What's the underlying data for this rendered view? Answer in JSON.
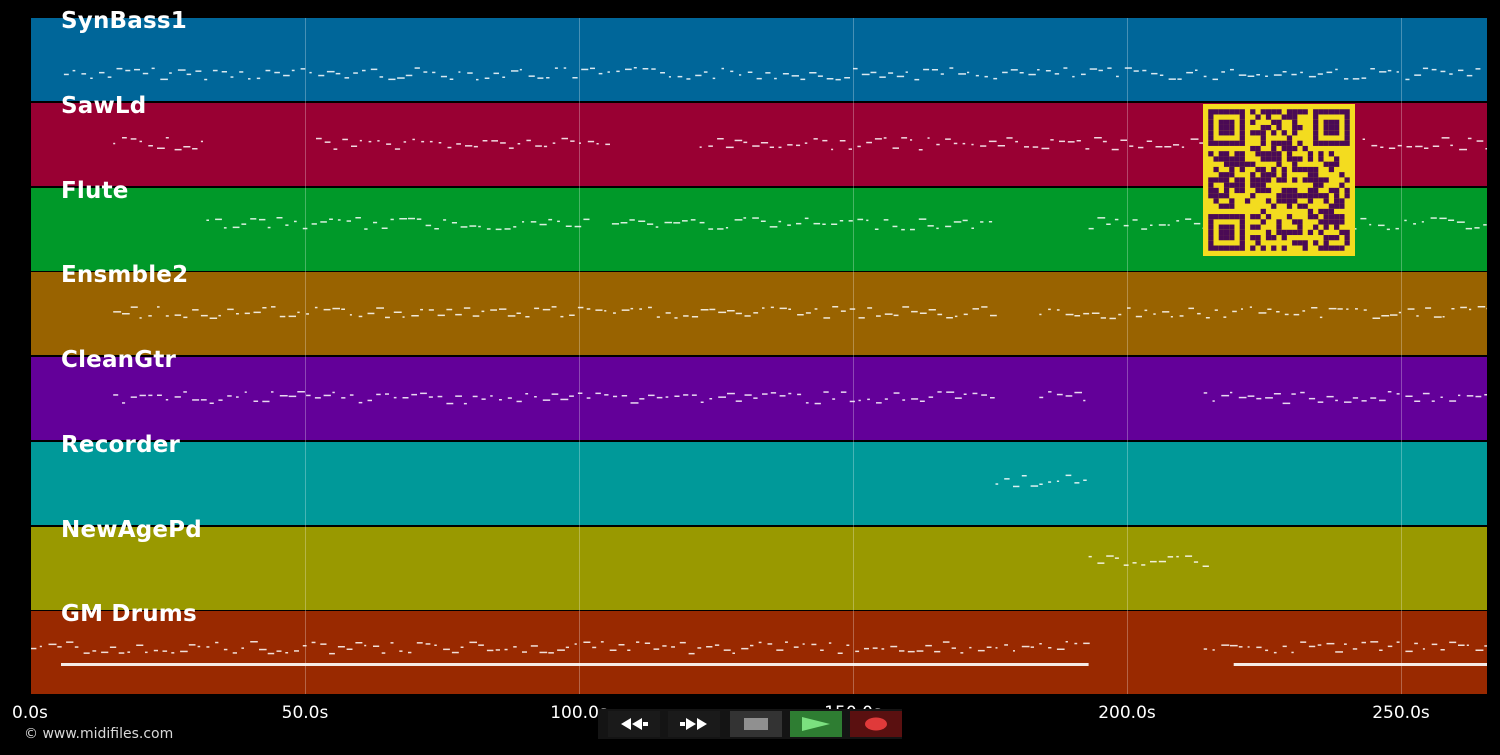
{
  "tracks": [
    {
      "name": "SynBass1",
      "color": "#006699"
    },
    {
      "name": "SawLd",
      "color": "#990033"
    },
    {
      "name": "Flute",
      "color": "#009929"
    },
    {
      "name": "Ensmble2",
      "color": "#996300"
    },
    {
      "name": "CleanGtr",
      "color": "#630099"
    },
    {
      "name": "Recorder",
      "color": "#009999"
    },
    {
      "name": "NewAgePd",
      "color": "#999900"
    },
    {
      "name": "GM Drums",
      "color": "#992900"
    }
  ],
  "timeline": {
    "ticks": [
      "0.0s",
      "50.0s",
      "100.0s",
      "150.0s",
      "200.0s",
      "250.0s"
    ],
    "unit": "s",
    "max_seconds": 266
  },
  "footer": {
    "copyright": "© www.midifiles.com"
  },
  "transport": {
    "buttons": [
      {
        "id": "rewind",
        "icon": "rewind-icon"
      },
      {
        "id": "fast-forward",
        "icon": "fast-forward-icon"
      },
      {
        "id": "stop",
        "icon": "stop-icon"
      },
      {
        "id": "play",
        "icon": "play-icon"
      },
      {
        "id": "record",
        "icon": "record-icon"
      }
    ],
    "colors": {
      "stop": "#909090",
      "play": "#2e7d32",
      "play_glyph": "#7be07f",
      "record": "#5a1010",
      "record_glyph": "#e03a3a"
    }
  },
  "qr_code": {
    "colors": {
      "background": "#f3dc1f",
      "modules": "#4a0a55"
    }
  }
}
